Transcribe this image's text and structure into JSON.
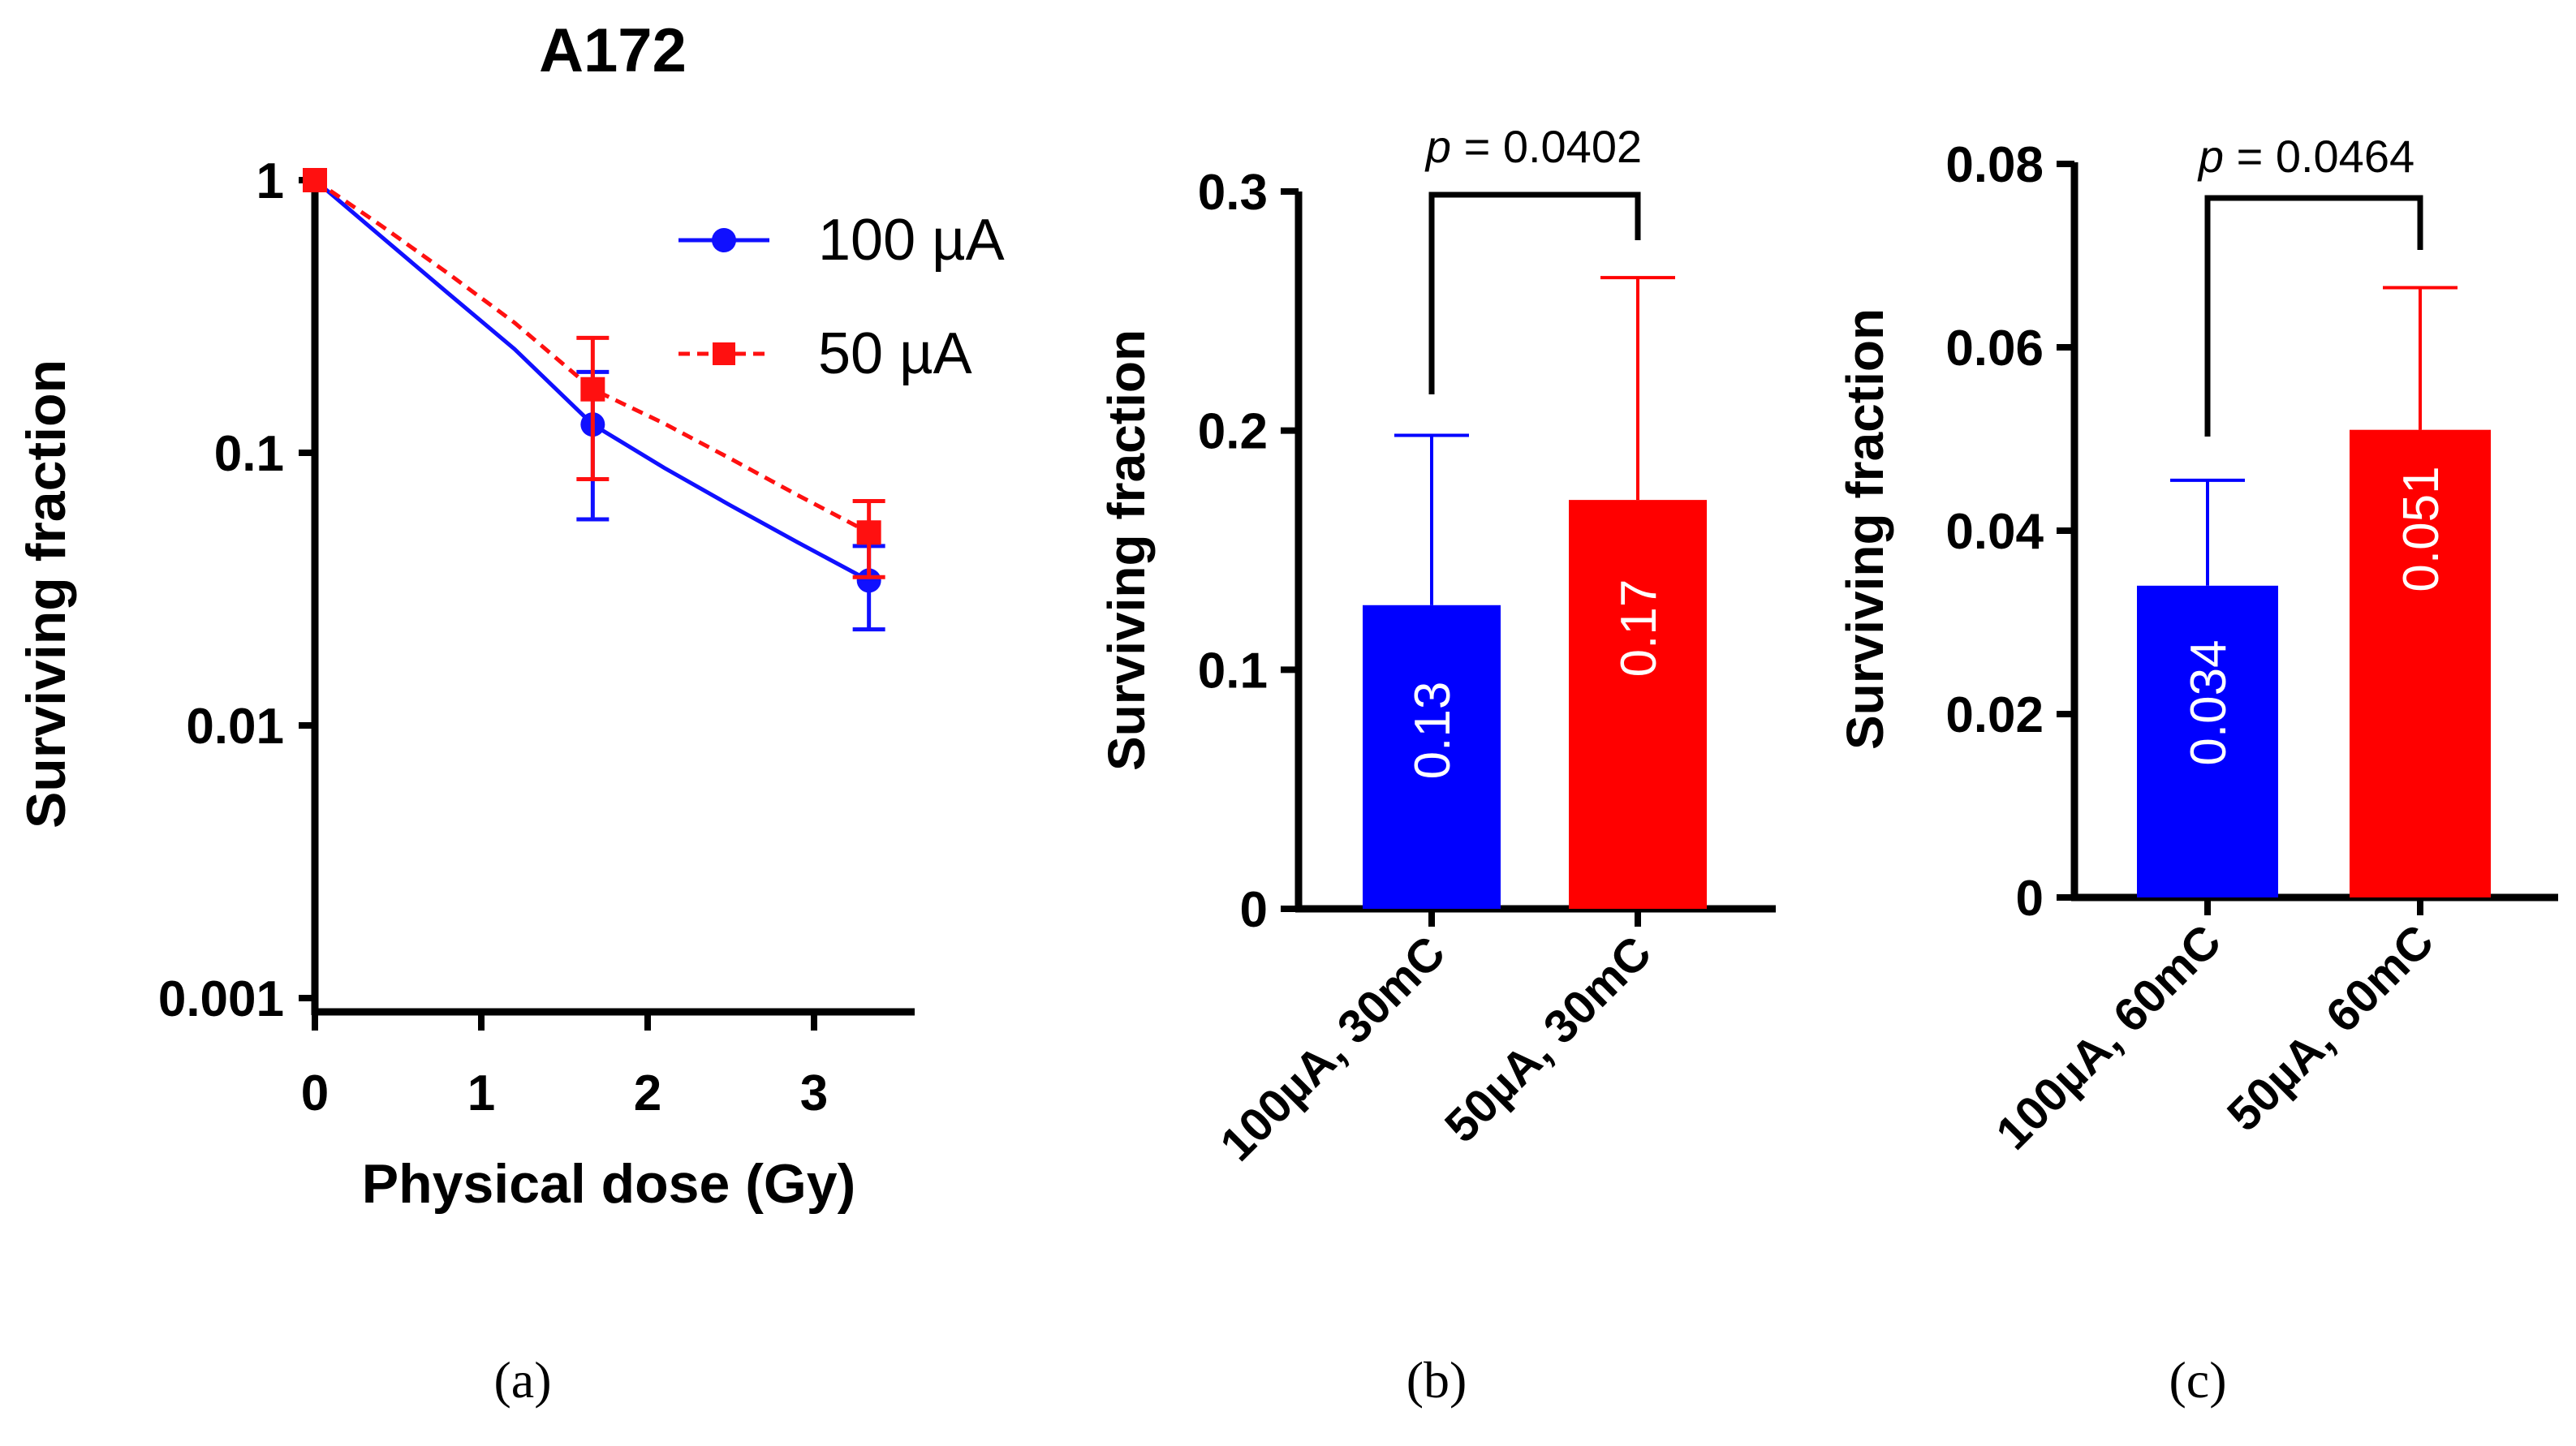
{
  "chart_data": [
    {
      "type": "line",
      "panel": "(a)",
      "title": "A172",
      "xlabel": "Physical dose (Gy)",
      "ylabel": "Surviving fraction",
      "xscale": "linear",
      "yscale": "log",
      "xlim": [
        0,
        3.6
      ],
      "ylim": [
        0.001,
        1
      ],
      "xticks": [
        "0",
        "1",
        "2",
        "3"
      ],
      "yticks": [
        "1",
        "0.1",
        "0.01",
        "0.001"
      ],
      "legend_position": "top-right",
      "series": [
        {
          "name": "100 µA",
          "color": "#1010ff",
          "marker": "circle",
          "line": "solid",
          "x": [
            0,
            1.67,
            3.33
          ],
          "y": [
            1.0,
            0.127,
            0.034
          ],
          "err_low": [
            1.0,
            0.057,
            0.0225
          ],
          "err_high": [
            1.0,
            0.198,
            0.0455
          ],
          "fit_x": [
            0,
            0.4,
            0.8,
            1.2,
            1.67,
            2.1,
            2.5,
            2.9,
            3.33
          ],
          "fit_y": [
            1.0,
            0.62,
            0.385,
            0.24,
            0.127,
            0.088,
            0.064,
            0.047,
            0.034
          ]
        },
        {
          "name": "50 µA",
          "color": "#ff1010",
          "marker": "square",
          "line": "dashed",
          "x": [
            0,
            1.67,
            3.33
          ],
          "y": [
            1.0,
            0.171,
            0.051
          ],
          "err_low": [
            1.0,
            0.08,
            0.035
          ],
          "err_high": [
            1.0,
            0.264,
            0.0665
          ],
          "fit_x": [
            0,
            0.4,
            0.8,
            1.2,
            1.67,
            2.1,
            2.5,
            2.9,
            3.33
          ],
          "fit_y": [
            1.0,
            0.68,
            0.455,
            0.3,
            0.171,
            0.128,
            0.095,
            0.07,
            0.051
          ]
        }
      ]
    },
    {
      "type": "bar",
      "panel": "(b)",
      "ylabel": "Surviving fraction",
      "ylim": [
        0,
        0.3
      ],
      "yticks": [
        "0",
        "0.1",
        "0.2",
        "0.3"
      ],
      "categories": [
        "100µA, 30mC",
        "50µA, 30mC"
      ],
      "values": [
        0.127,
        0.171
      ],
      "errors": [
        0.071,
        0.093
      ],
      "data_labels": [
        "0.13",
        "0.17"
      ],
      "colors": [
        "#0000ff",
        "#ff0000"
      ],
      "annotation": {
        "italic": "p",
        "text": " = 0.0402"
      }
    },
    {
      "type": "bar",
      "panel": "(c)",
      "ylabel": "Surviving fraction",
      "ylim": [
        0,
        0.08
      ],
      "yticks": [
        "0",
        "0.02",
        "0.04",
        "0.06",
        "0.08"
      ],
      "categories": [
        "100µA, 60mC",
        "50µA, 60mC"
      ],
      "values": [
        0.034,
        0.051
      ],
      "errors": [
        0.0115,
        0.0155
      ],
      "data_labels": [
        "0.034",
        "0.051"
      ],
      "colors": [
        "#0000ff",
        "#ff0000"
      ],
      "annotation": {
        "italic": "p",
        "text": " = 0.0464"
      }
    }
  ],
  "captions": [
    "(a)",
    "(b)",
    "(c)"
  ]
}
